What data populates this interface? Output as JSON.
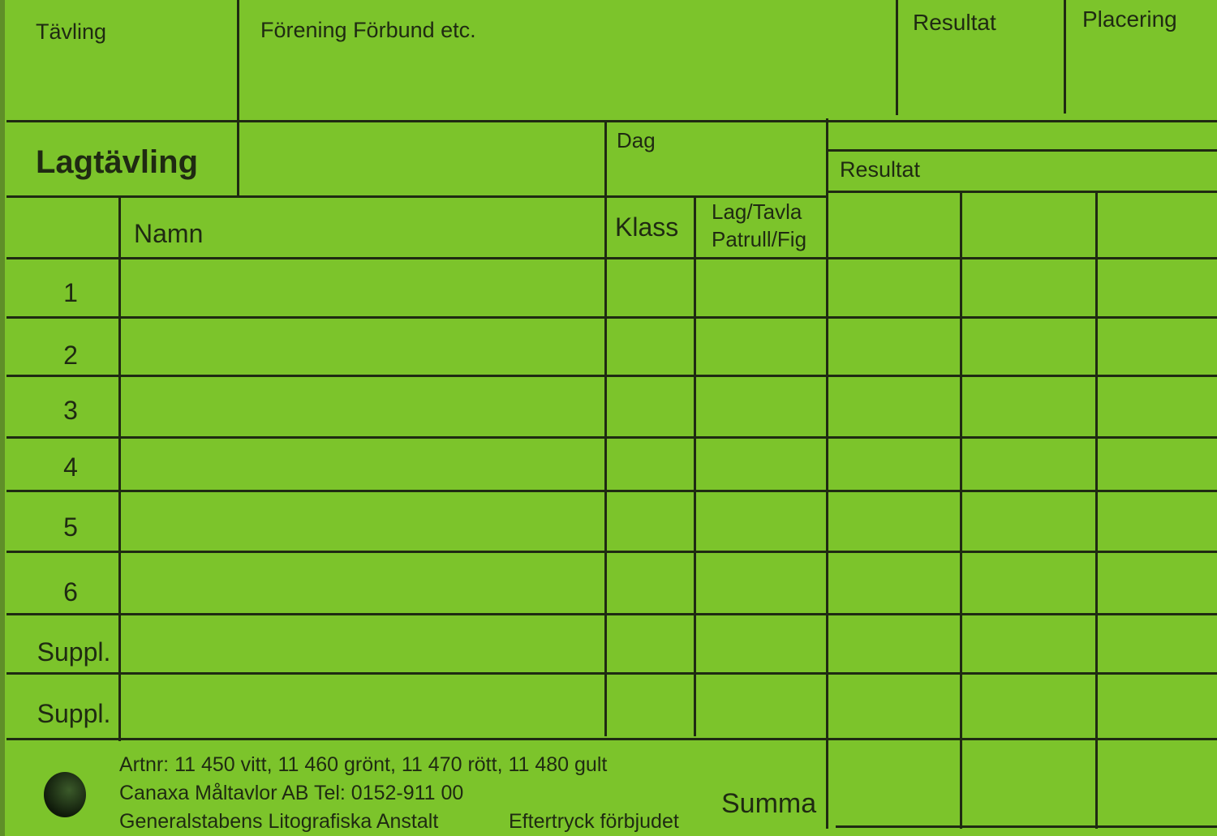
{
  "header": {
    "competition_label": "Tävling",
    "club_label": "Förening Förbund etc.",
    "result_label": "Resultat",
    "placing_label": "Placering"
  },
  "section": {
    "title": "Lagtävling",
    "day_label": "Dag",
    "result_label": "Resultat"
  },
  "table": {
    "columns": [
      "Namn",
      "Klass",
      "Lag/Tavla",
      "Patrull/Fig"
    ],
    "rows": [
      "1",
      "2",
      "3",
      "4",
      "5",
      "6",
      "Suppl.",
      "Suppl."
    ],
    "total_label": "Summa"
  },
  "footer": {
    "line1": "Artnr: 11 450 vitt, 11 460 grönt, 11 470 rött, 11 480 gult",
    "line2": "Canaxa Måltavlor AB Tel: 0152-911 00",
    "line3": "Generalstabens Litografiska Anstalt",
    "line3b": "Eftertryck förbjudet"
  },
  "colors": {
    "card": "#7cc42b",
    "ink": "#1f2a12"
  }
}
